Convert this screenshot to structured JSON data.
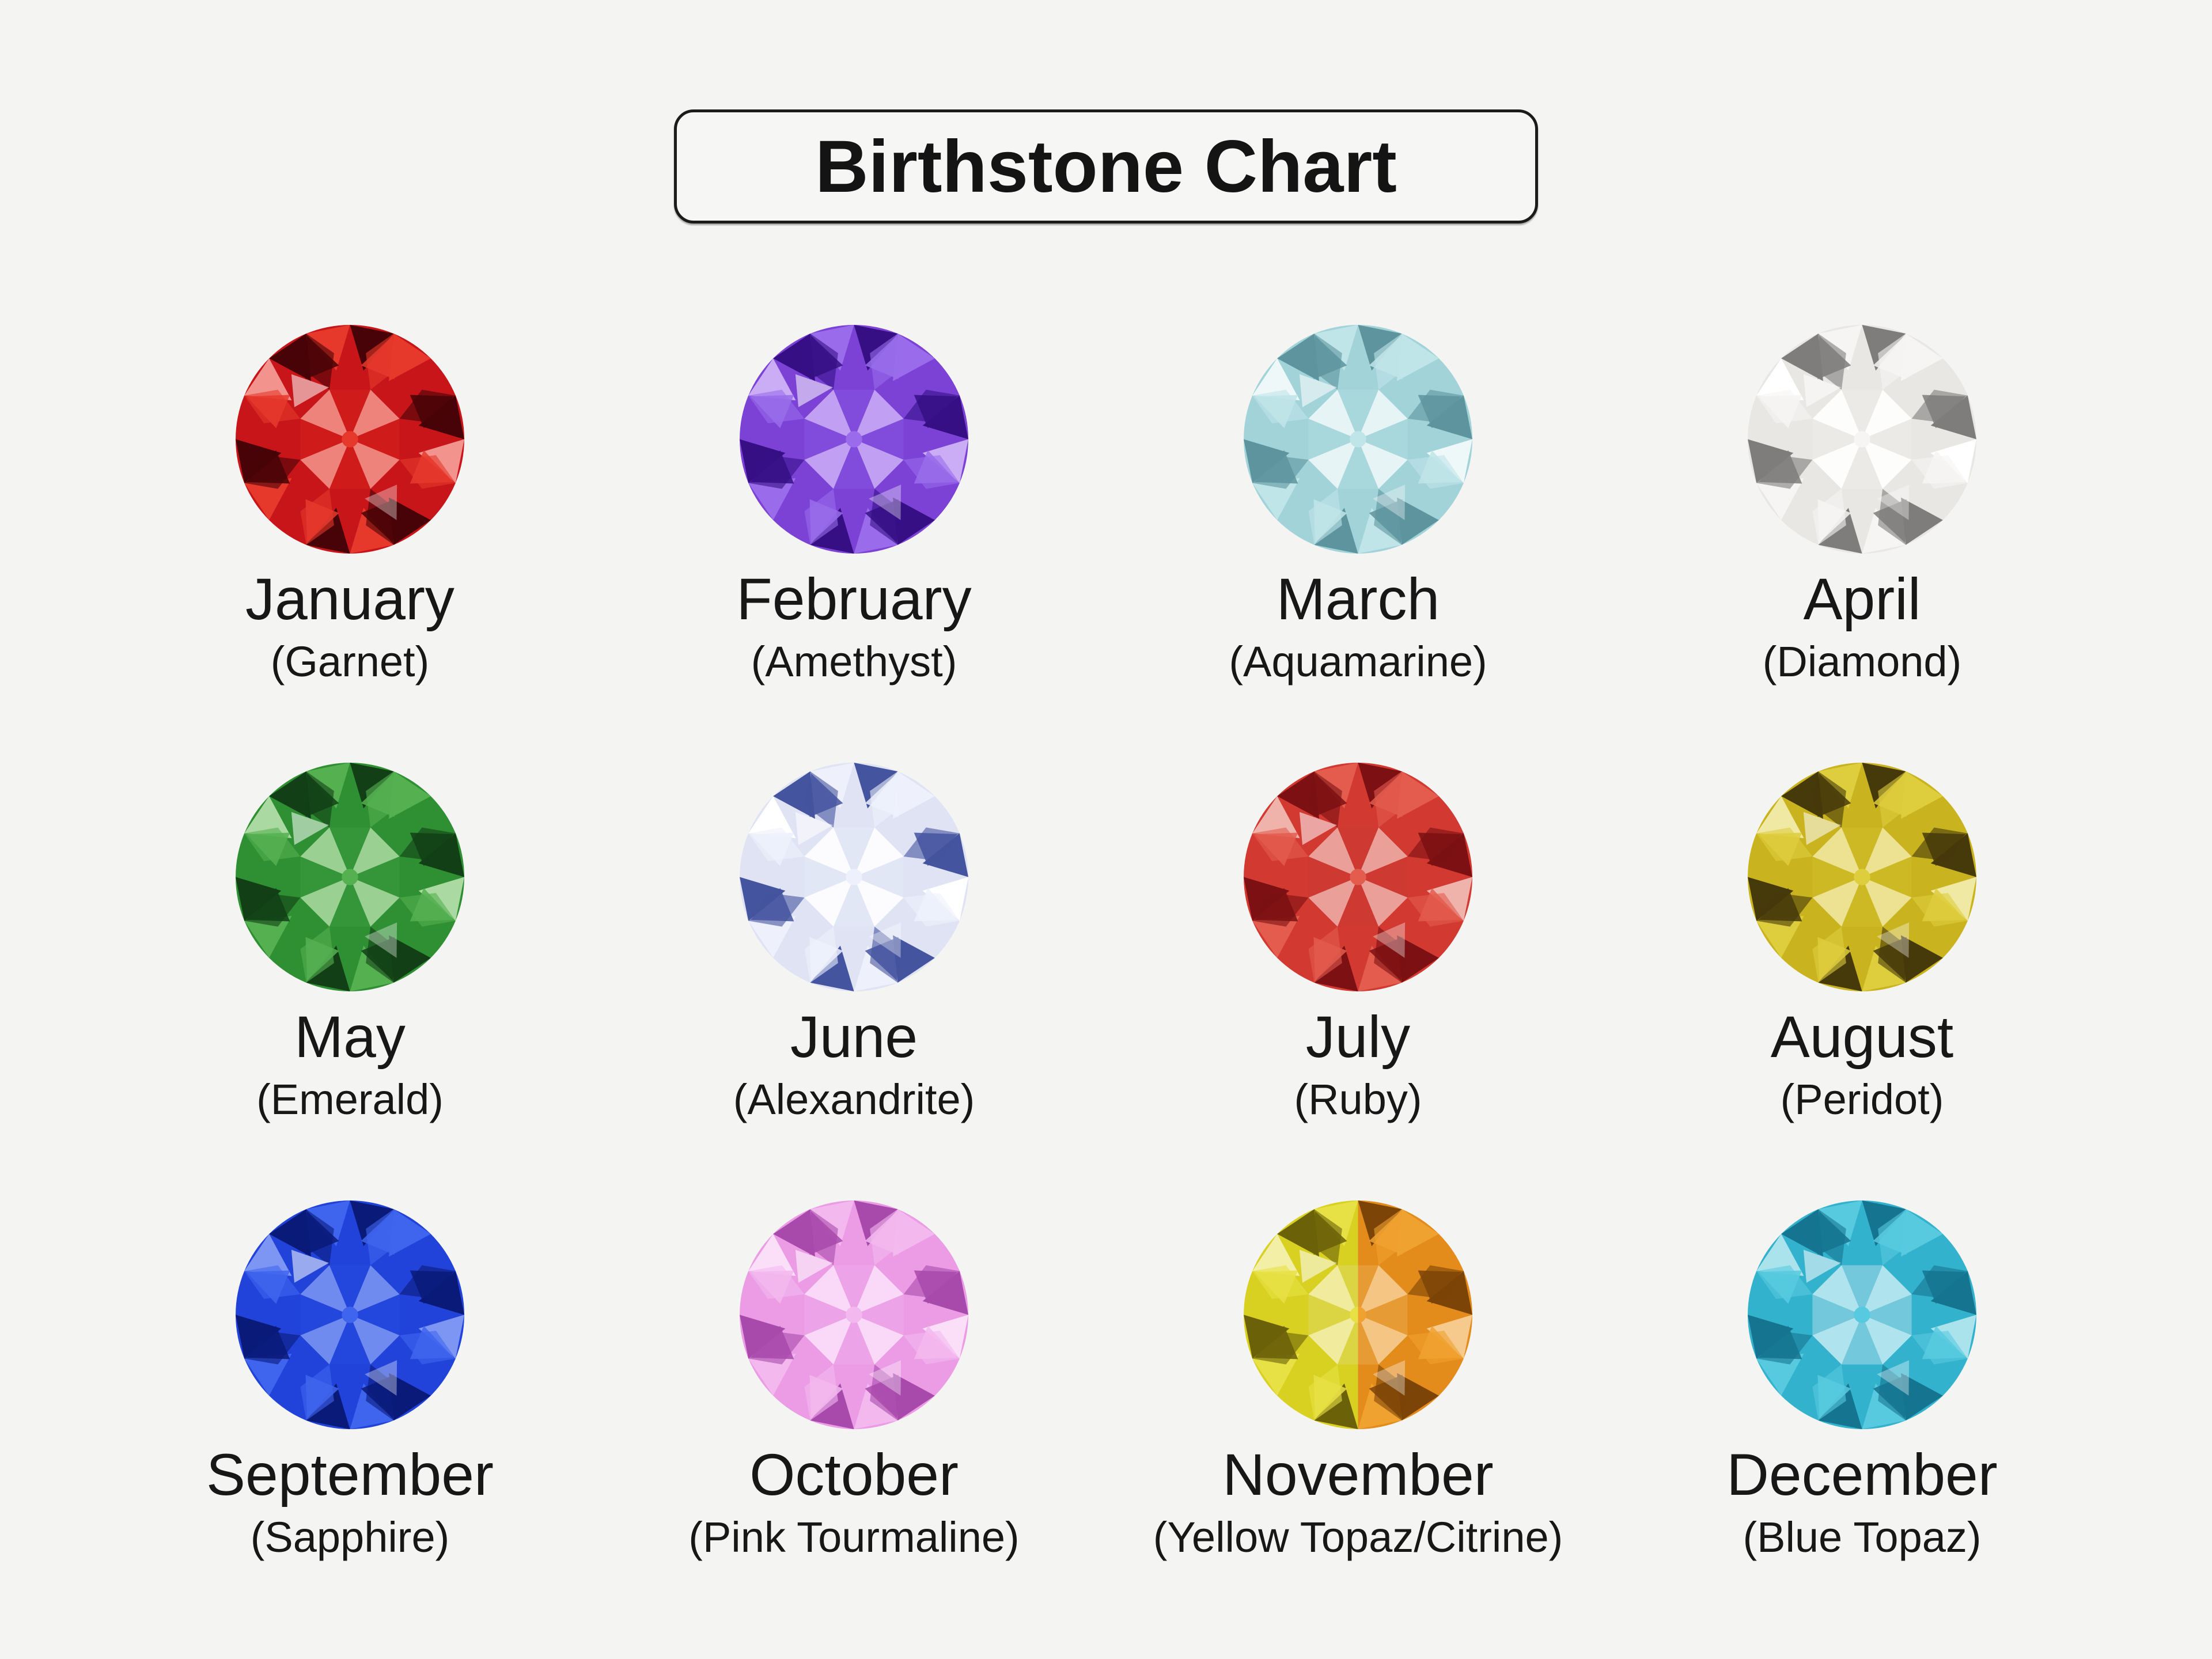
{
  "title": "Birthstone Chart",
  "background_color": "#f4f4f3",
  "text_color": "#171717",
  "months": [
    {
      "month": "January",
      "stone": "(Garnet)",
      "icon": "garnet-gem-icon",
      "palette": {
        "base": "#c8151a",
        "dark": "#470307",
        "mid": "#e6392b",
        "light": "#f2948d",
        "table": "#d7251d"
      }
    },
    {
      "month": "February",
      "stone": "(Amethyst)",
      "icon": "amethyst-gem-icon",
      "palette": {
        "base": "#7c42d6",
        "dark": "#360f85",
        "mid": "#9a6ceb",
        "light": "#cbadf6",
        "table": "#8757e2"
      }
    },
    {
      "month": "March",
      "stone": "(Aquamarine)",
      "icon": "aquamarine-gem-icon",
      "palette": {
        "base": "#a2d3d9",
        "dark": "#5d949e",
        "mid": "#c0e5e9",
        "light": "#eef8f9",
        "table": "#b2dde1"
      }
    },
    {
      "month": "April",
      "stone": "(Diamond)",
      "icon": "diamond-gem-icon",
      "palette": {
        "base": "#e9e7e4",
        "dark": "#7e7d7b",
        "mid": "#f6f5f3",
        "light": "#ffffff",
        "table": "#efedeb"
      }
    },
    {
      "month": "May",
      "stone": "(Emerald)",
      "icon": "emerald-gem-icon",
      "palette": {
        "base": "#2f9033",
        "dark": "#123f16",
        "mid": "#55b050",
        "light": "#aadaa2",
        "table": "#3c9c40"
      }
    },
    {
      "month": "June",
      "stone": "(Alexandrite)",
      "icon": "alexandrite-gem-icon",
      "palette": {
        "base": "#dfe3f4",
        "dark": "#44549f",
        "mid": "#eef1fb",
        "light": "#ffffff",
        "table": "#e7eaf8"
      }
    },
    {
      "month": "July",
      "stone": "(Ruby)",
      "icon": "ruby-gem-icon",
      "palette": {
        "base": "#d23931",
        "dark": "#7c1013",
        "mid": "#e35c4e",
        "light": "#f0b3ac",
        "table": "#cb3a31"
      }
    },
    {
      "month": "August",
      "stone": "(Peridot)",
      "icon": "peridot-gem-icon",
      "palette": {
        "base": "#c9b41f",
        "dark": "#46390a",
        "mid": "#decd3d",
        "light": "#f0e9a4",
        "table": "#d3be2b"
      }
    },
    {
      "month": "September",
      "stone": "(Sapphire)",
      "icon": "sapphire-gem-icon",
      "palette": {
        "base": "#2143da",
        "dark": "#0a1a79",
        "mid": "#3f65ef",
        "light": "#7d96f3",
        "table": "#2749de"
      }
    },
    {
      "month": "October",
      "stone": "(Pink Tourmaline)",
      "icon": "pink-tourmaline-gem-icon",
      "palette": {
        "base": "#eb9ce5",
        "dark": "#a849ac",
        "mid": "#f3b9ef",
        "light": "#fbdff9",
        "table": "#f0ace9"
      }
    },
    {
      "month": "November",
      "stone": "(Yellow Topaz/Citrine)",
      "icon": "yellow-topaz-citrine-gem-icon",
      "palette": {
        "base": "#d8d122",
        "dark": "#6b6109",
        "mid": "#e7e145",
        "light": "#f3efa6",
        "table": "#ddd76a"
      },
      "palette2": {
        "base": "#e38b1b",
        "dark": "#7c4407",
        "mid": "#f0a231",
        "light": "#f6c98c",
        "table": "#eaaf55"
      }
    },
    {
      "month": "December",
      "stone": "(Blue Topaz)",
      "icon": "blue-topaz-gem-icon",
      "palette": {
        "base": "#33b2cd",
        "dark": "#15748f",
        "mid": "#58cadf",
        "light": "#abe3ed",
        "table": "#c2e5ec"
      }
    }
  ]
}
